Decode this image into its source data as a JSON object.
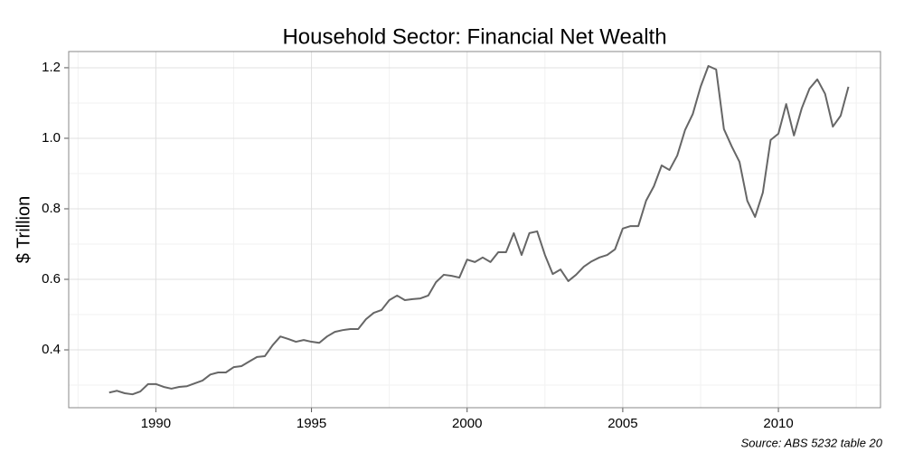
{
  "chart_data": {
    "type": "line",
    "title": "Household Sector: Financial Net Wealth",
    "y_label": "$ Trillion",
    "source": "Source: ABS 5232 table 20",
    "color": "#666666",
    "grid": true,
    "x": [
      1988.5,
      1988.75,
      1989,
      1989.25,
      1989.5,
      1989.75,
      1990,
      1990.25,
      1990.5,
      1990.75,
      1991,
      1991.25,
      1991.5,
      1991.75,
      1992,
      1992.25,
      1992.5,
      1992.75,
      1993,
      1993.25,
      1993.5,
      1993.75,
      1994,
      1994.25,
      1994.5,
      1994.75,
      1995,
      1995.25,
      1995.5,
      1995.75,
      1996,
      1996.25,
      1996.5,
      1996.75,
      1997,
      1997.25,
      1997.5,
      1997.75,
      1998,
      1998.25,
      1998.5,
      1998.75,
      1999,
      1999.25,
      1999.5,
      1999.75,
      2000,
      2000.25,
      2000.5,
      2000.75,
      2001,
      2001.25,
      2001.5,
      2001.75,
      2002,
      2002.25,
      2002.5,
      2002.75,
      2003,
      2003.25,
      2003.5,
      2003.75,
      2004,
      2004.25,
      2004.5,
      2004.75,
      2005,
      2005.25,
      2005.5,
      2005.75,
      2006,
      2006.25,
      2006.5,
      2006.75,
      2007,
      2007.25,
      2007.5,
      2007.75,
      2008,
      2008.25,
      2008.5,
      2008.75,
      2009,
      2009.25,
      2009.5,
      2009.75,
      2010,
      2010.25,
      2010.5,
      2010.75,
      2011,
      2011.25,
      2011.5,
      2011.75,
      2012,
      2012.25
    ],
    "values": [
      0.279,
      0.284,
      0.277,
      0.274,
      0.282,
      0.303,
      0.303,
      0.295,
      0.29,
      0.295,
      0.297,
      0.305,
      0.313,
      0.33,
      0.336,
      0.336,
      0.351,
      0.354,
      0.367,
      0.38,
      0.382,
      0.413,
      0.438,
      0.431,
      0.423,
      0.428,
      0.423,
      0.42,
      0.438,
      0.451,
      0.456,
      0.459,
      0.459,
      0.487,
      0.505,
      0.513,
      0.541,
      0.554,
      0.541,
      0.544,
      0.546,
      0.554,
      0.592,
      0.613,
      0.61,
      0.605,
      0.656,
      0.649,
      0.662,
      0.649,
      0.677,
      0.677,
      0.731,
      0.669,
      0.731,
      0.736,
      0.669,
      0.615,
      0.628,
      0.595,
      0.613,
      0.636,
      0.651,
      0.662,
      0.669,
      0.685,
      0.744,
      0.751,
      0.751,
      0.823,
      0.864,
      0.923,
      0.91,
      0.951,
      1.023,
      1.069,
      1.146,
      1.205,
      1.195,
      1.026,
      0.977,
      0.933,
      0.823,
      0.777,
      0.846,
      0.995,
      1.013,
      1.097,
      1.008,
      1.085,
      1.141,
      1.167,
      1.126,
      1.033,
      1.064,
      1.146
    ],
    "xlim": [
      1987.2,
      2013.28
    ],
    "ylim": [
      0.236,
      1.246
    ],
    "xticks": [
      1990,
      1995,
      2000,
      2005,
      2010
    ],
    "yticks": [
      0.4,
      0.6,
      0.8,
      {
        "value": 1,
        "label": "1.0"
      },
      1.2
    ],
    "xminorticks": [
      1987.5,
      1992.5,
      1997.5,
      2002.5,
      2007.5,
      2012.5
    ],
    "yminorticks": [
      0.3,
      0.5,
      0.7,
      0.9,
      1.1
    ]
  }
}
